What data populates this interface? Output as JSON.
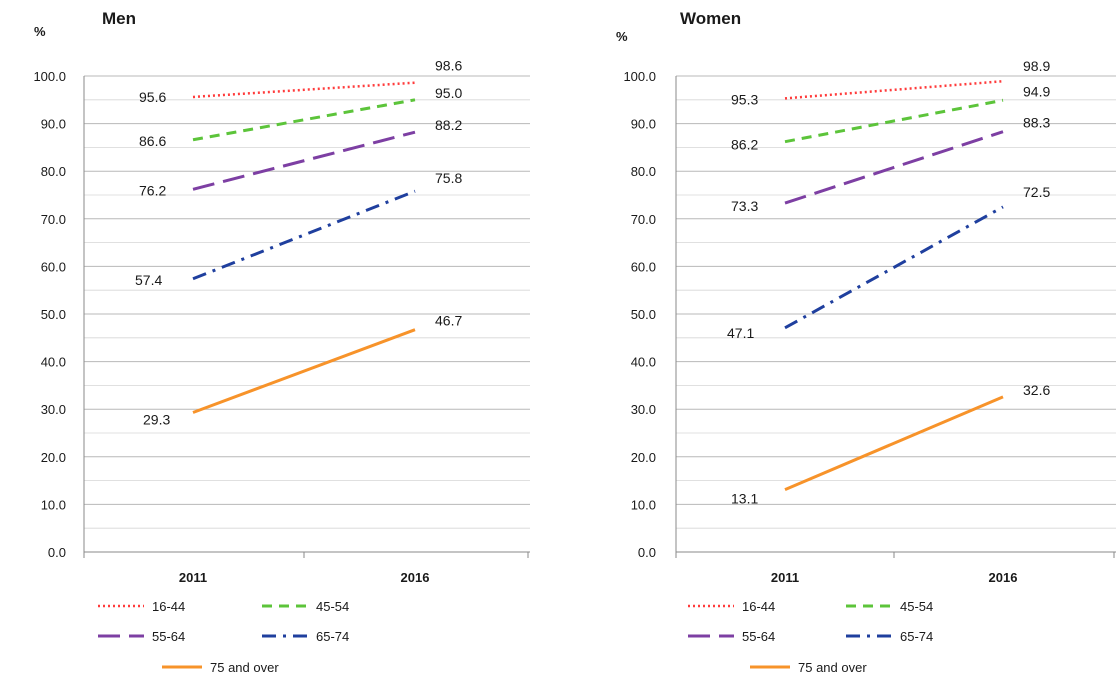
{
  "chart_data": [
    {
      "type": "line",
      "title": "Men",
      "ylabel": "%",
      "xlabel": "",
      "categories": [
        "2011",
        "2016"
      ],
      "ylim": [
        0,
        100
      ],
      "yticks": [
        "0.0",
        "10.0",
        "20.0",
        "30.0",
        "40.0",
        "50.0",
        "60.0",
        "70.0",
        "80.0",
        "90.0",
        "100.0"
      ],
      "grid": true,
      "legend_position": "bottom",
      "series": [
        {
          "name": "16-44",
          "values": [
            95.6,
            98.6
          ],
          "labels": [
            "95.6",
            "98.6"
          ],
          "color": "#ff3b3b",
          "dash": "dotted"
        },
        {
          "name": "45-54",
          "values": [
            86.6,
            95.0
          ],
          "labels": [
            "86.6",
            "95.0"
          ],
          "color": "#5cc43a",
          "dash": "dashed"
        },
        {
          "name": "55-64",
          "values": [
            76.2,
            88.2
          ],
          "labels": [
            "76.2",
            "88.2"
          ],
          "color": "#7d3fa3",
          "dash": "longdash"
        },
        {
          "name": "65-74",
          "values": [
            57.4,
            75.8
          ],
          "labels": [
            "57.4",
            "75.8"
          ],
          "color": "#1f3f9e",
          "dash": "dashdot"
        },
        {
          "name": "75 and over",
          "values": [
            29.3,
            46.7
          ],
          "labels": [
            "29.3",
            "46.7"
          ],
          "color": "#f7932a",
          "dash": "solid"
        }
      ]
    },
    {
      "type": "line",
      "title": "Women",
      "ylabel": "%",
      "xlabel": "",
      "categories": [
        "2011",
        "2016"
      ],
      "ylim": [
        0,
        100
      ],
      "yticks": [
        "0.0",
        "10.0",
        "20.0",
        "30.0",
        "40.0",
        "50.0",
        "60.0",
        "70.0",
        "80.0",
        "90.0",
        "100.0"
      ],
      "grid": true,
      "legend_position": "bottom",
      "series": [
        {
          "name": "16-44",
          "values": [
            95.3,
            98.9
          ],
          "labels": [
            "95.3",
            "98.9"
          ],
          "color": "#ff3b3b",
          "dash": "dotted"
        },
        {
          "name": "45-54",
          "values": [
            86.2,
            94.9
          ],
          "labels": [
            "86.2",
            "94.9"
          ],
          "color": "#5cc43a",
          "dash": "dashed"
        },
        {
          "name": "55-64",
          "values": [
            73.3,
            88.3
          ],
          "labels": [
            "73.3",
            "88.3"
          ],
          "color": "#7d3fa3",
          "dash": "longdash"
        },
        {
          "name": "65-74",
          "values": [
            47.1,
            72.5
          ],
          "labels": [
            "47.1",
            "72.5"
          ],
          "color": "#1f3f9e",
          "dash": "dashdot"
        },
        {
          "name": "75 and over",
          "values": [
            13.1,
            32.6
          ],
          "labels": [
            "13.1",
            "32.6"
          ],
          "color": "#f7932a",
          "dash": "solid"
        }
      ]
    }
  ]
}
